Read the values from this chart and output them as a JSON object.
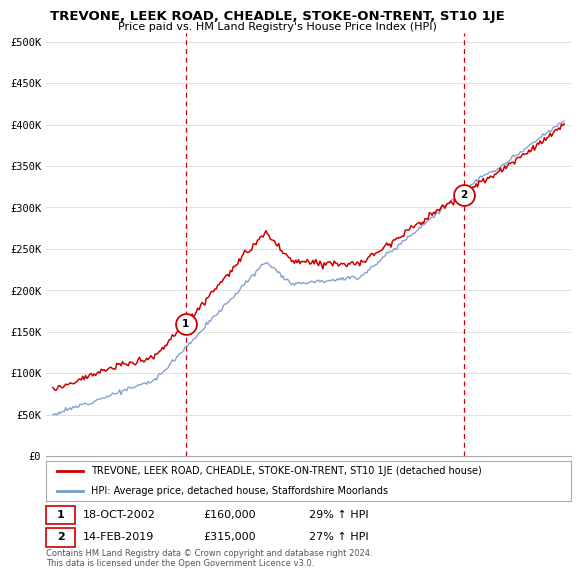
{
  "title": "TREVONE, LEEK ROAD, CHEADLE, STOKE-ON-TRENT, ST10 1JE",
  "subtitle": "Price paid vs. HM Land Registry's House Price Index (HPI)",
  "ylabel_ticks": [
    "£0",
    "£50K",
    "£100K",
    "£150K",
    "£200K",
    "£250K",
    "£300K",
    "£350K",
    "£400K",
    "£450K",
    "£500K"
  ],
  "ytick_values": [
    0,
    50000,
    100000,
    150000,
    200000,
    250000,
    300000,
    350000,
    400000,
    450000,
    500000
  ],
  "ylim": [
    0,
    510000
  ],
  "xlim_start": 1994.6,
  "xlim_end": 2025.4,
  "sale1_x": 2002.8,
  "sale1_y": 160000,
  "sale2_x": 2019.1,
  "sale2_y": 315000,
  "legend_line1": "TREVONE, LEEK ROAD, CHEADLE, STOKE-ON-TRENT, ST10 1JE (detached house)",
  "legend_line2": "HPI: Average price, detached house, Staffordshire Moorlands",
  "note1_num": "1",
  "note1_date": "18-OCT-2002",
  "note1_price": "£160,000",
  "note1_hpi": "29% ↑ HPI",
  "note2_num": "2",
  "note2_date": "14-FEB-2019",
  "note2_price": "£315,000",
  "note2_hpi": "27% ↑ HPI",
  "footer": "Contains HM Land Registry data © Crown copyright and database right 2024.\nThis data is licensed under the Open Government Licence v3.0.",
  "color_red": "#cc0000",
  "color_blue": "#7799cc",
  "color_dashed_red": "#cc0000",
  "background_color": "#ffffff",
  "grid_color": "#e0e0e0"
}
